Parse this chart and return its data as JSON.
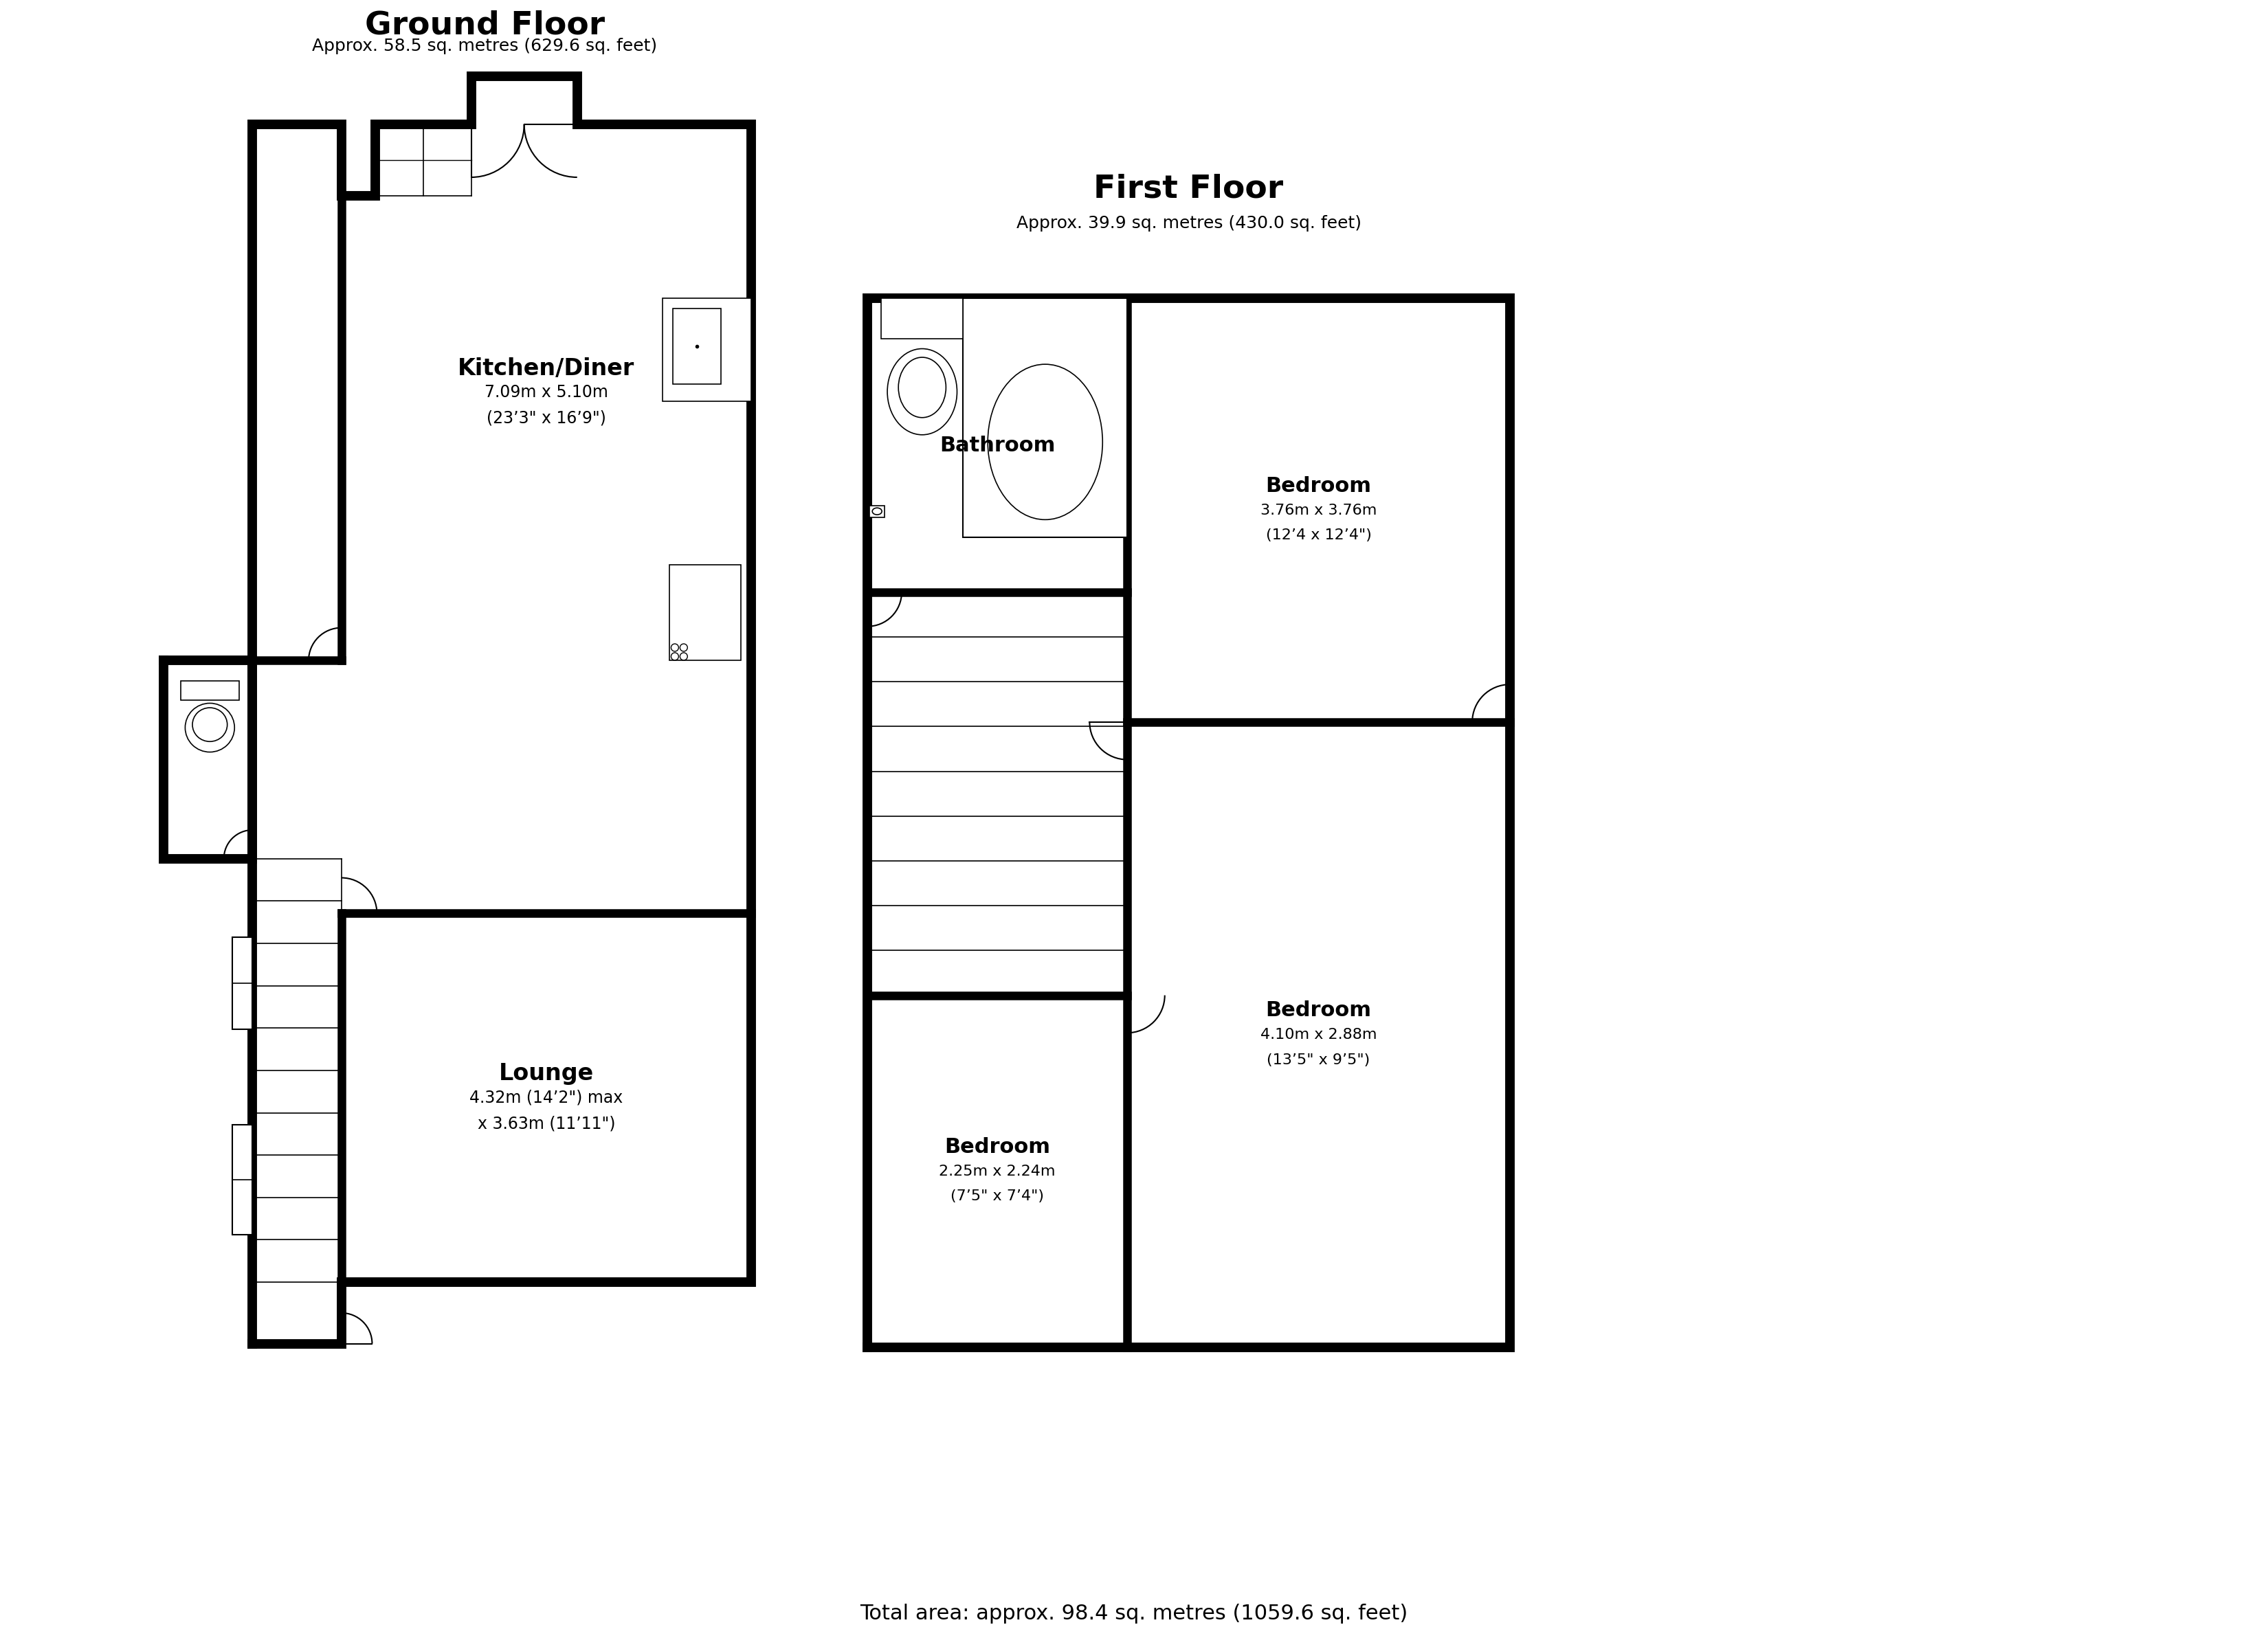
{
  "bg_color": "#ffffff",
  "wall_color": "#000000",
  "title_gf": "Ground Floor",
  "subtitle_gf": "Approx. 58.5 sq. metres (629.6 sq. feet)",
  "title_ff": "First Floor",
  "subtitle_ff": "Approx. 39.9 sq. metres (430.0 sq. feet)",
  "footer": "Total area: approx. 98.4 sq. metres (1059.6 sq. feet)",
  "room_kitchen_label": "Kitchen/Diner",
  "room_kitchen_dim1": "7.09m x 5.10m",
  "room_kitchen_dim2": "(23’3\" x 16’9\")",
  "room_lounge_label": "Lounge",
  "room_lounge_dim1": "4.32m (14’2\") max",
  "room_lounge_dim2": "x 3.63m (11’11\")",
  "room_bathroom_label": "Bathroom",
  "room_bed1_label": "Bedroom",
  "room_bed1_dim1": "3.76m x 3.76m",
  "room_bed1_dim2": "(12’4 x 12’4\")",
  "room_bed2_label": "Bedroom",
  "room_bed2_dim1": "4.10m x 2.88m",
  "room_bed2_dim2": "(13’5\" x 9’5\")",
  "room_bed3_label": "Bedroom",
  "room_bed3_dim1": "2.25m x 2.24m",
  "room_bed3_dim2": "(7’5\" x 7’4\")"
}
